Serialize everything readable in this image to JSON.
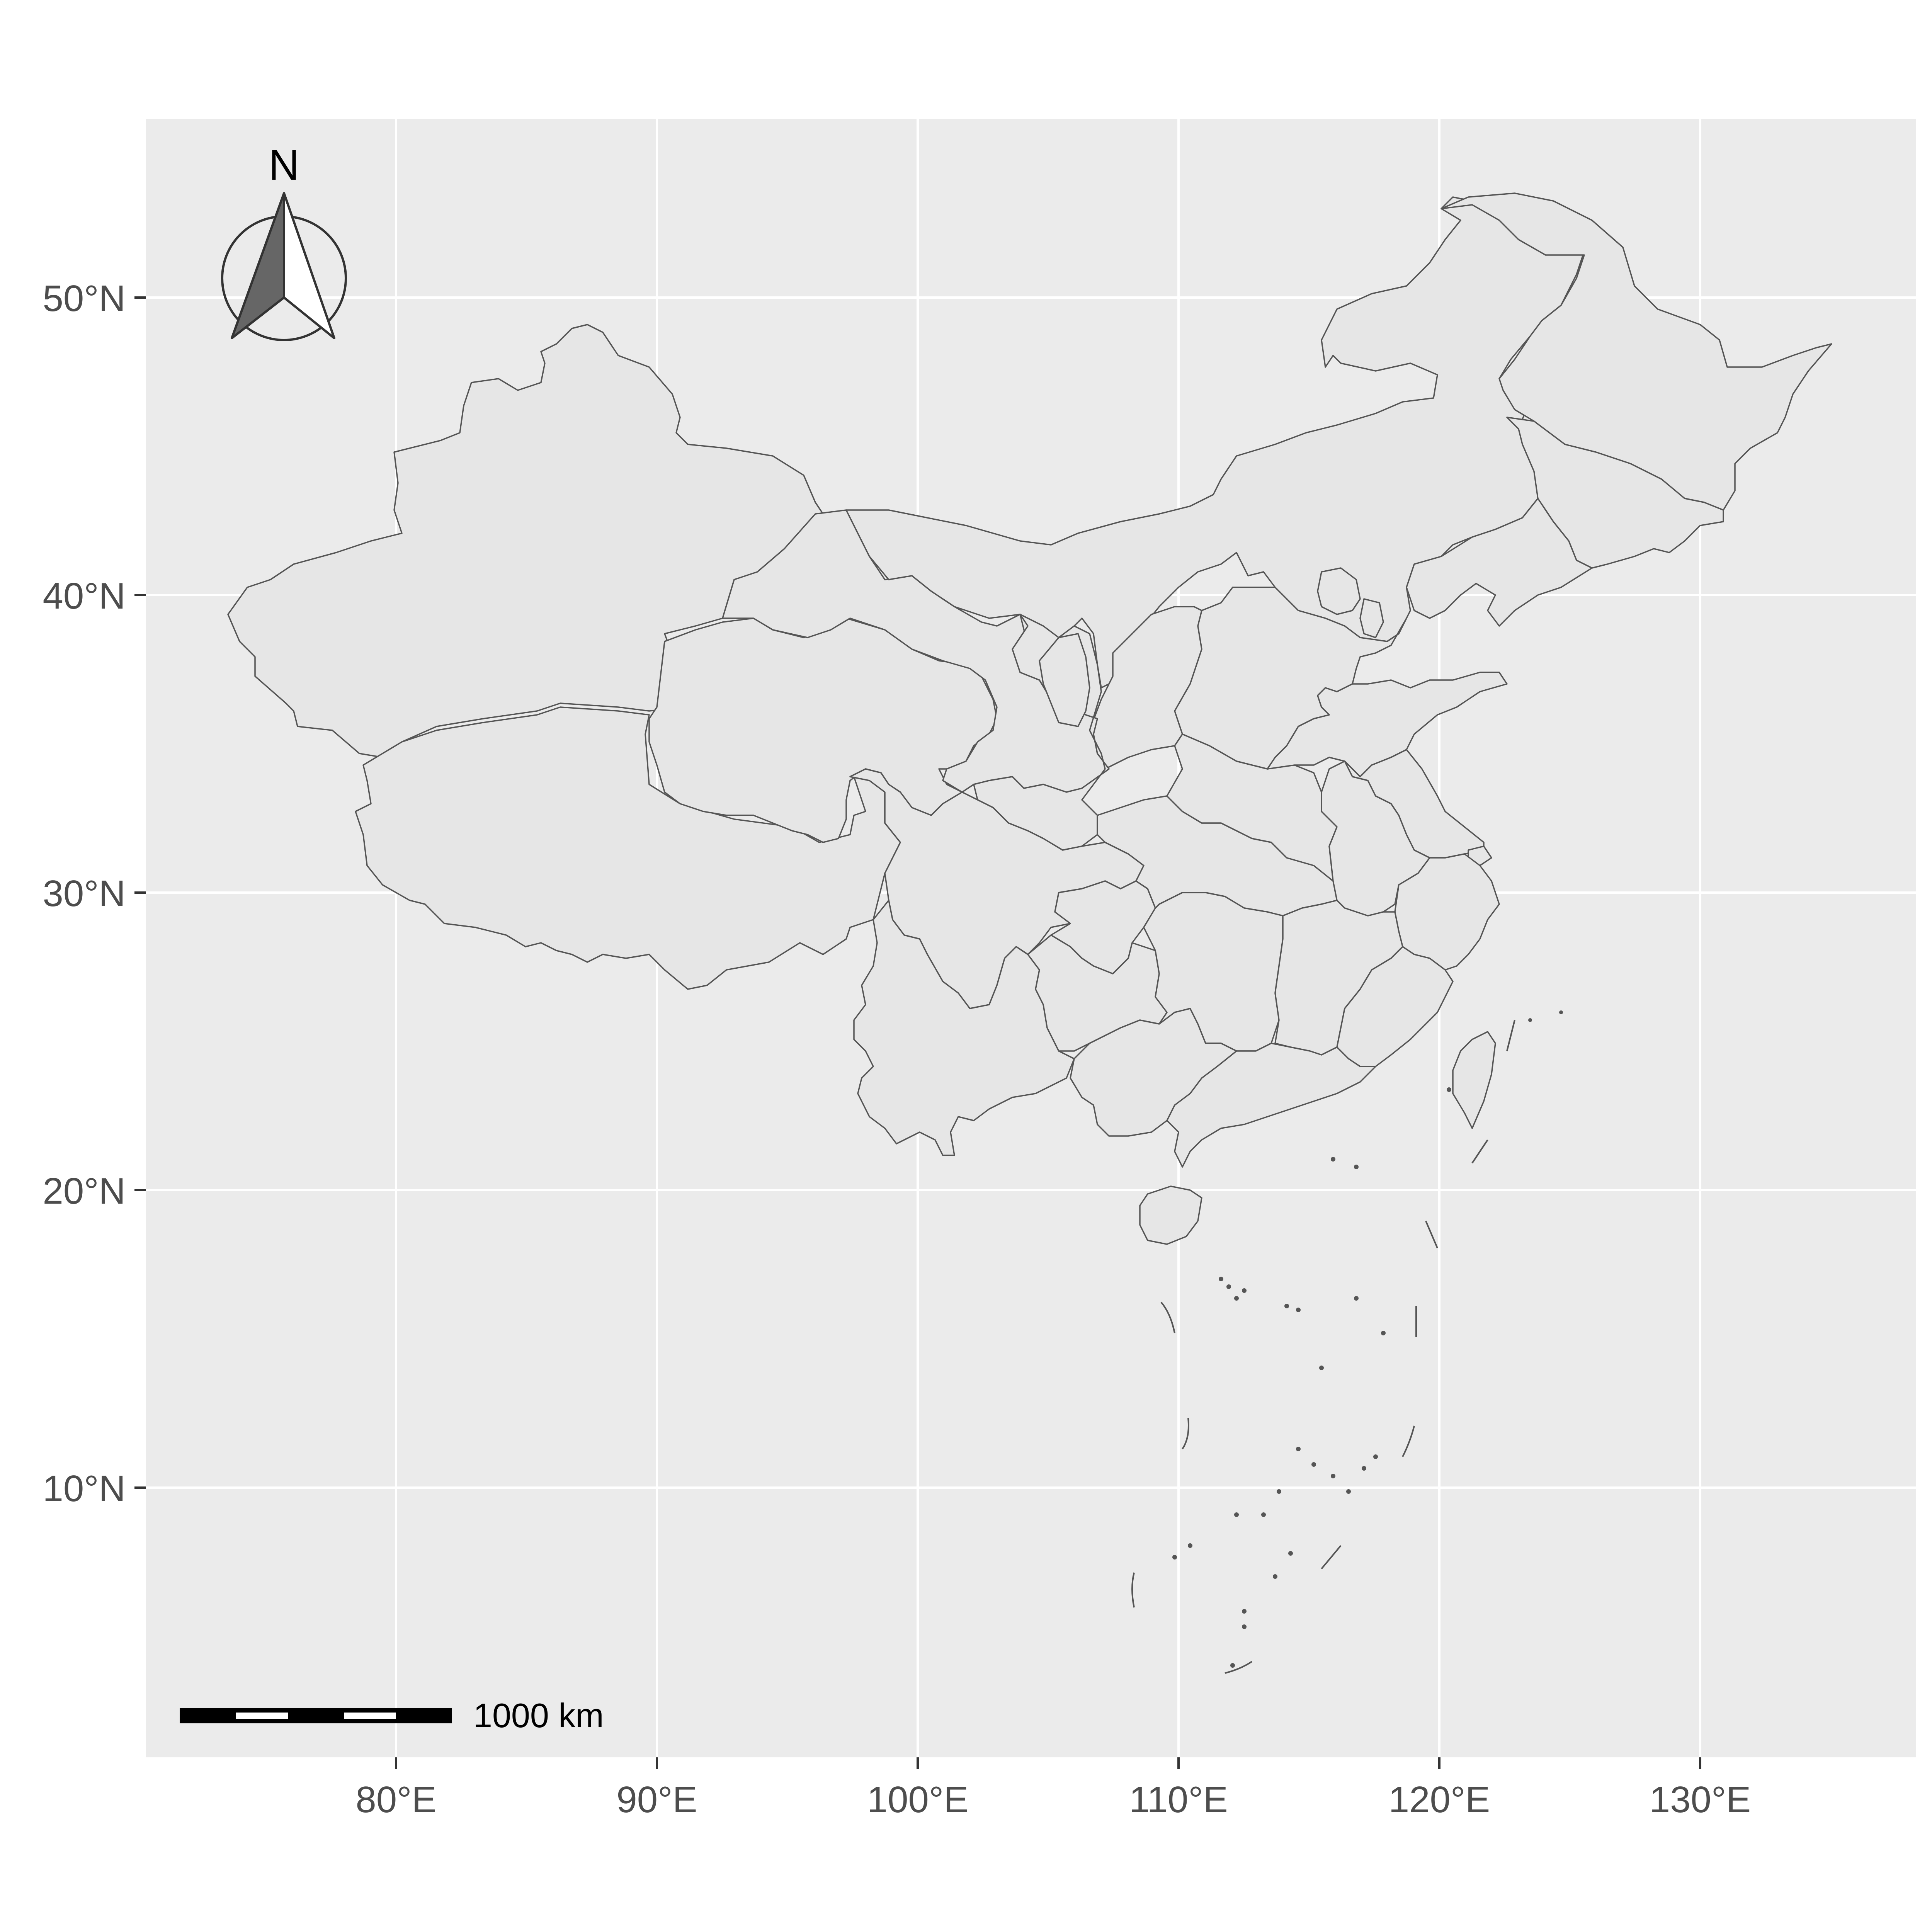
{
  "map": {
    "x_ticks": [
      "80°E",
      "90°E",
      "100°E",
      "110°E",
      "120°E",
      "130°E"
    ],
    "y_ticks": [
      "50°N",
      "40°N",
      "30°N",
      "20°N",
      "10°N"
    ],
    "north_arrow": {
      "label": "N",
      "icon": "north-arrow-icon"
    },
    "scale_bar": {
      "label": "1000 km"
    },
    "colors": {
      "panel_background": "#ebebeb",
      "gridline": "#ffffff",
      "land_fill": "#e6e6e6",
      "border": "#555555",
      "tick_text": "#4d4d4d"
    },
    "grid": true
  }
}
